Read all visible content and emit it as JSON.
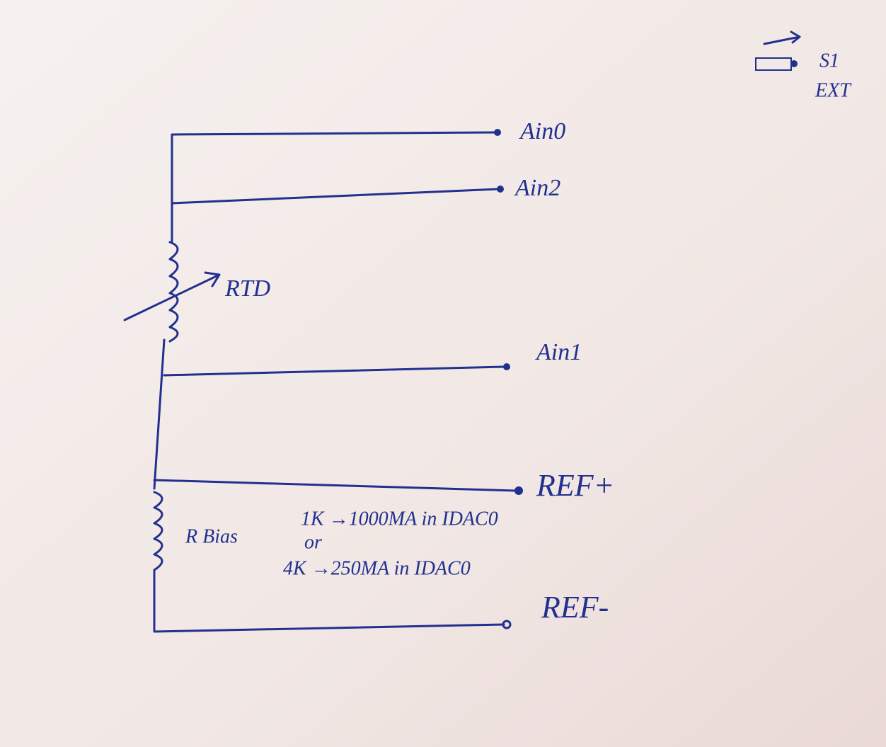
{
  "nodes": [
    {
      "label": "Ain0"
    },
    {
      "label": "Ain2"
    },
    {
      "label": "RTD"
    },
    {
      "label": "Ain1"
    },
    {
      "label": "REF+"
    },
    {
      "label": "R Bias"
    },
    {
      "label": "REF-"
    }
  ],
  "notes": [
    "1K →1000MA in IDAC0",
    "or",
    "4K →250MA in IDAC0"
  ],
  "switch": {
    "labels": [
      "S1",
      "EXT"
    ]
  }
}
